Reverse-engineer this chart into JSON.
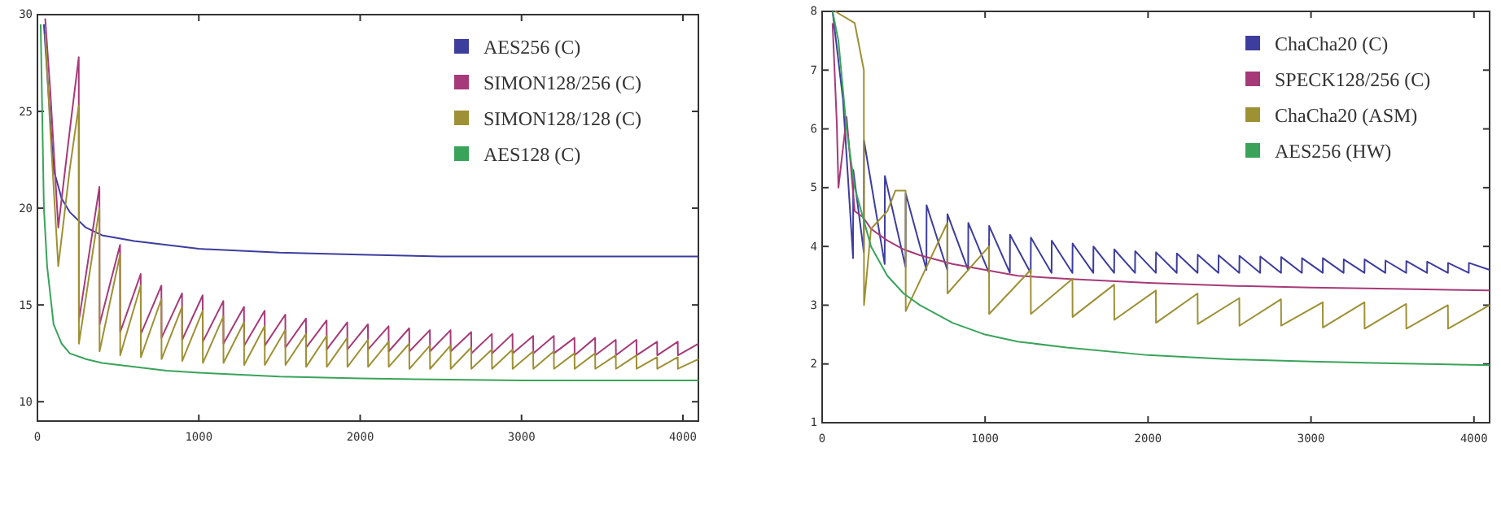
{
  "chart_data": [
    {
      "type": "line",
      "xlim": [
        0,
        4096
      ],
      "xticks": [
        0,
        1000,
        2000,
        3000,
        4000
      ],
      "ylim": [
        9,
        30
      ],
      "yticks": [
        10,
        15,
        20,
        25,
        30
      ],
      "grid": false,
      "legend": "top right",
      "marker": "none",
      "line_style": "solid",
      "series": [
        {
          "name": "AES256 (C)",
          "color": "#3d3d9e",
          "x": [
            40,
            100,
            150,
            200,
            300,
            400,
            600,
            800,
            1000,
            1500,
            2000,
            2500,
            3000,
            3500,
            4096
          ],
          "values": [
            29.5,
            22,
            20.5,
            19.8,
            19,
            18.6,
            18.3,
            18.1,
            17.9,
            17.7,
            17.6,
            17.5,
            17.5,
            17.5,
            17.5
          ]
        },
        {
          "name": "SIMON128/256 (C)",
          "color": "#a63a78",
          "x": [
            48,
            80,
            129,
            200,
            256,
            257,
            384,
            385,
            512,
            513,
            640,
            641,
            768,
            769,
            896,
            897,
            1024,
            1025,
            1152,
            1153,
            1280,
            1281,
            1408,
            1409,
            1536,
            1537,
            1664,
            1665,
            1792,
            1793,
            1920,
            1921,
            2048,
            2049,
            2176,
            2177,
            2304,
            2305,
            2432,
            2433,
            2560,
            2561,
            2688,
            2689,
            2816,
            2817,
            2944,
            2945,
            3072,
            3073,
            3200,
            3201,
            3328,
            3329,
            3456,
            3457,
            3584,
            3585,
            3712,
            3713,
            3840,
            3841,
            3968,
            3969,
            4096
          ],
          "values": [
            29.8,
            26,
            19,
            24,
            27.8,
            14.2,
            21.1,
            14.0,
            18.1,
            13.6,
            16.6,
            13.5,
            16.0,
            13.3,
            15.6,
            13.2,
            15.5,
            13.1,
            15.2,
            13.0,
            14.9,
            12.9,
            14.7,
            12.9,
            14.5,
            12.8,
            14.3,
            12.8,
            14.2,
            12.7,
            14.1,
            12.7,
            14.0,
            12.7,
            13.9,
            12.6,
            13.8,
            12.6,
            13.7,
            12.6,
            13.7,
            12.6,
            13.6,
            12.5,
            13.5,
            12.5,
            13.5,
            12.5,
            13.4,
            12.5,
            13.4,
            12.5,
            13.3,
            12.4,
            13.3,
            12.4,
            13.2,
            12.4,
            13.2,
            12.4,
            13.1,
            12.4,
            13.1,
            12.4,
            13.0
          ]
        },
        {
          "name": "SIMON128/128 (C)",
          "color": "#9e9035",
          "x": [
            48,
            80,
            129,
            200,
            256,
            257,
            384,
            385,
            512,
            513,
            640,
            641,
            768,
            769,
            896,
            897,
            1024,
            1025,
            1152,
            1153,
            1280,
            1281,
            1408,
            1409,
            1536,
            1537,
            1664,
            1665,
            1792,
            1793,
            1920,
            1921,
            2048,
            2049,
            2176,
            2177,
            2304,
            2305,
            2432,
            2433,
            2560,
            2561,
            2688,
            2689,
            2816,
            2817,
            2944,
            2945,
            3072,
            3073,
            3200,
            3201,
            3328,
            3329,
            3456,
            3457,
            3584,
            3585,
            3712,
            3713,
            3840,
            3841,
            3968,
            3969,
            4096
          ],
          "values": [
            29,
            24,
            17,
            22,
            25.3,
            13.0,
            20.0,
            12.6,
            17.6,
            12.4,
            16.0,
            12.3,
            15.3,
            12.2,
            14.9,
            12.1,
            14.7,
            12.0,
            14.4,
            12.0,
            14.1,
            11.9,
            13.9,
            11.9,
            13.7,
            11.9,
            13.5,
            11.8,
            13.4,
            11.8,
            13.3,
            11.8,
            13.2,
            11.8,
            13.1,
            11.8,
            13.0,
            11.7,
            12.9,
            11.7,
            12.9,
            11.7,
            12.8,
            11.7,
            12.7,
            11.7,
            12.7,
            11.7,
            12.6,
            11.7,
            12.6,
            11.7,
            12.5,
            11.7,
            12.5,
            11.7,
            12.4,
            11.7,
            12.4,
            11.7,
            12.3,
            11.7,
            12.3,
            11.7,
            12.2
          ]
        },
        {
          "name": "AES128 (C)",
          "color": "#3aa35a",
          "x": [
            20,
            40,
            60,
            100,
            150,
            200,
            300,
            400,
            600,
            800,
            1000,
            1500,
            2000,
            3000,
            4096
          ],
          "values": [
            29.5,
            20,
            17,
            14,
            13,
            12.5,
            12.2,
            12,
            11.8,
            11.6,
            11.5,
            11.3,
            11.2,
            11.1,
            11.1
          ]
        }
      ]
    },
    {
      "type": "line",
      "xlim": [
        0,
        4096
      ],
      "xticks": [
        0,
        1000,
        2000,
        3000,
        4000
      ],
      "ylim": [
        1,
        8
      ],
      "yticks": [
        1,
        2,
        3,
        4,
        5,
        6,
        7,
        8
      ],
      "grid": false,
      "legend": "top right",
      "marker": "none",
      "line_style": "solid",
      "series": [
        {
          "name": "ChaCha20 (C)",
          "color": "#3d3d9e",
          "x": [
            64,
            128,
            190,
            191,
            256,
            257,
            384,
            385,
            512,
            513,
            640,
            641,
            768,
            769,
            896,
            897,
            1024,
            1025,
            1152,
            1153,
            1280,
            1281,
            1408,
            1409,
            1536,
            1537,
            1664,
            1665,
            1792,
            1793,
            1920,
            1921,
            2048,
            2049,
            2176,
            2177,
            2304,
            2305,
            2432,
            2433,
            2560,
            2561,
            2688,
            2689,
            2816,
            2817,
            2944,
            2945,
            3072,
            3073,
            3200,
            3201,
            3328,
            3329,
            3456,
            3457,
            3584,
            3585,
            3712,
            3713,
            3840,
            3841,
            3968,
            3969,
            4096
          ],
          "values": [
            8,
            6.5,
            3.8,
            5.3,
            3.9,
            5.8,
            3.7,
            5.2,
            3.65,
            4.9,
            3.6,
            4.7,
            3.6,
            4.55,
            3.6,
            4.4,
            3.55,
            4.35,
            3.55,
            4.2,
            3.55,
            4.15,
            3.55,
            4.1,
            3.55,
            4.05,
            3.55,
            4.0,
            3.55,
            3.95,
            3.55,
            3.92,
            3.55,
            3.9,
            3.55,
            3.88,
            3.55,
            3.86,
            3.55,
            3.85,
            3.55,
            3.84,
            3.55,
            3.83,
            3.55,
            3.82,
            3.55,
            3.8,
            3.55,
            3.8,
            3.55,
            3.78,
            3.55,
            3.78,
            3.55,
            3.76,
            3.55,
            3.75,
            3.55,
            3.74,
            3.55,
            3.72,
            3.55,
            3.72,
            3.6
          ]
        },
        {
          "name": "SPECK128/256 (C)",
          "color": "#a63a78",
          "x": [
            64,
            90,
            100,
            150,
            200,
            250,
            300,
            400,
            500,
            600,
            800,
            1000,
            1200,
            1500,
            2000,
            2500,
            3000,
            3500,
            4096
          ],
          "values": [
            7.8,
            6.1,
            5.0,
            6.2,
            4.6,
            4.5,
            4.3,
            4.1,
            3.95,
            3.85,
            3.7,
            3.6,
            3.5,
            3.45,
            3.38,
            3.33,
            3.3,
            3.28,
            3.25
          ]
        },
        {
          "name": "ChaCha20 (ASM)",
          "color": "#9e9035",
          "x": [
            80,
            200,
            256,
            257,
            300,
            400,
            450,
            512,
            513,
            768,
            769,
            1024,
            1025,
            1280,
            1281,
            1536,
            1537,
            1792,
            1793,
            2048,
            2049,
            2304,
            2305,
            2560,
            2561,
            2816,
            2817,
            3072,
            3073,
            3328,
            3329,
            3584,
            3585,
            3840,
            3841,
            4096
          ],
          "values": [
            8,
            7.8,
            7.0,
            3.0,
            4.3,
            4.6,
            4.95,
            4.95,
            2.9,
            4.4,
            3.2,
            4.0,
            2.85,
            3.6,
            2.85,
            3.45,
            2.8,
            3.35,
            2.75,
            3.25,
            2.7,
            3.2,
            2.68,
            3.12,
            2.65,
            3.1,
            2.65,
            3.05,
            2.62,
            3.05,
            2.6,
            3.02,
            2.6,
            3.0,
            2.6,
            3.0
          ]
        },
        {
          "name": "AES256 (HW)",
          "color": "#3aa35a",
          "x": [
            64,
            100,
            150,
            200,
            300,
            400,
            500,
            600,
            800,
            1000,
            1200,
            1500,
            2000,
            2500,
            3000,
            3500,
            4096
          ],
          "values": [
            8,
            7.5,
            6.0,
            5.0,
            4.0,
            3.5,
            3.2,
            3.0,
            2.7,
            2.5,
            2.38,
            2.28,
            2.15,
            2.08,
            2.04,
            2.01,
            1.98
          ]
        }
      ]
    }
  ]
}
